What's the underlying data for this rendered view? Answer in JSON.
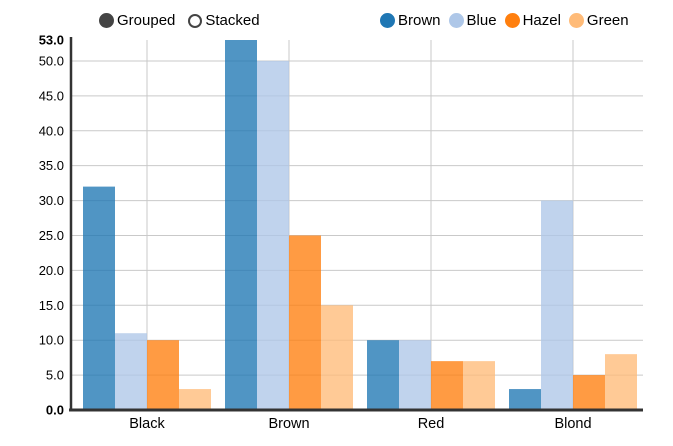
{
  "controls": {
    "items": [
      {
        "label": "Grouped",
        "selected": true
      },
      {
        "label": "Stacked",
        "selected": false
      }
    ]
  },
  "legend": {
    "items": [
      {
        "label": "Brown",
        "color": "#1f77b4"
      },
      {
        "label": "Blue",
        "color": "#aec7e8"
      },
      {
        "label": "Hazel",
        "color": "#ff7f0e"
      },
      {
        "label": "Green",
        "color": "#ffbb78"
      }
    ]
  },
  "chart_data": {
    "type": "bar",
    "mode": "grouped",
    "title": "",
    "xlabel": "",
    "ylabel": "",
    "categories": [
      "Black",
      "Brown",
      "Red",
      "Blond"
    ],
    "series": [
      {
        "name": "Brown",
        "color": "#1f77b4",
        "values": [
          32,
          53,
          10,
          3
        ]
      },
      {
        "name": "Blue",
        "color": "#aec7e8",
        "values": [
          11,
          50,
          10,
          30
        ]
      },
      {
        "name": "Hazel",
        "color": "#ff7f0e",
        "values": [
          10,
          25,
          7,
          5
        ]
      },
      {
        "name": "Green",
        "color": "#ffbb78",
        "values": [
          3,
          15,
          7,
          8
        ]
      }
    ],
    "ylim": [
      0,
      53
    ],
    "grid": true,
    "legend_position": "top-right",
    "controls_position": "top-left",
    "yticks": [
      {
        "label": "0.0",
        "value": 0,
        "bold": true
      },
      {
        "label": "5.0",
        "value": 5,
        "bold": false
      },
      {
        "label": "10.0",
        "value": 10,
        "bold": false
      },
      {
        "label": "15.0",
        "value": 15,
        "bold": false
      },
      {
        "label": "20.0",
        "value": 20,
        "bold": false
      },
      {
        "label": "25.0",
        "value": 25,
        "bold": false
      },
      {
        "label": "30.0",
        "value": 30,
        "bold": false
      },
      {
        "label": "35.0",
        "value": 35,
        "bold": false
      },
      {
        "label": "40.0",
        "value": 40,
        "bold": false
      },
      {
        "label": "45.0",
        "value": 45,
        "bold": false
      },
      {
        "label": "50.0",
        "value": 50,
        "bold": false
      },
      {
        "label": "53.0",
        "value": 53,
        "bold": true
      }
    ]
  },
  "colors": {
    "background": "#ffffff",
    "axis_line": "#333333",
    "gridline": "#c9c9c9",
    "text": "#000000",
    "control_dot": "#444444",
    "bar_fill_opacity": 0.78
  }
}
